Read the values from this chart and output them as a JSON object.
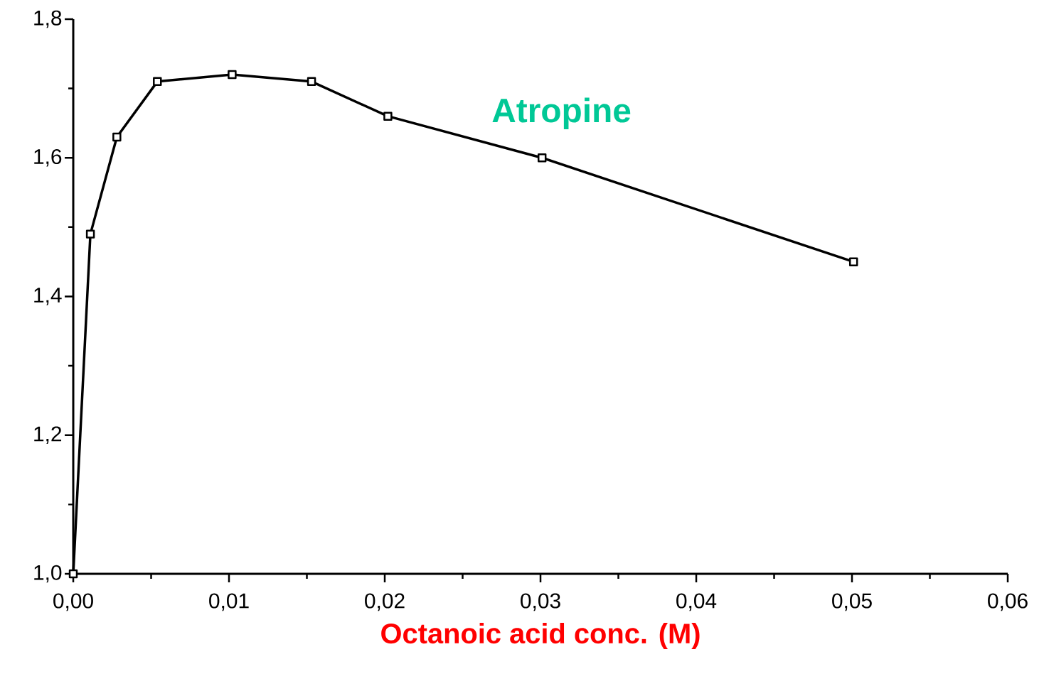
{
  "chart_data": {
    "type": "line",
    "xlabel": "Octanoic acid conc. (M)",
    "x": [
      0,
      0.0011,
      0.0028,
      0.0054,
      0.0102,
      0.0153,
      0.0202,
      0.0301,
      0.0501
    ],
    "series": [
      {
        "name": "Atropine",
        "color": "#000000",
        "values": [
          1.0,
          1.49,
          1.63,
          1.71,
          1.72,
          1.71,
          1.66,
          1.6,
          1.45
        ]
      }
    ],
    "xlim": [
      0,
      0.06
    ],
    "ylim": [
      1.0,
      1.8
    ],
    "xticks": [
      {
        "value": 0,
        "label": "0,00"
      },
      {
        "value": 0.01,
        "label": "0,01"
      },
      {
        "value": 0.02,
        "label": "0,02"
      },
      {
        "value": 0.03,
        "label": "0,03"
      },
      {
        "value": 0.04,
        "label": "0,04"
      },
      {
        "value": 0.05,
        "label": "0,05"
      },
      {
        "value": 0.06,
        "label": "0,06"
      }
    ],
    "yticks": [
      {
        "value": 1.0,
        "label": "1,0"
      },
      {
        "value": 1.2,
        "label": "1,2"
      },
      {
        "value": 1.4,
        "label": "1,4"
      },
      {
        "value": 1.6,
        "label": "1,6"
      },
      {
        "value": 1.8,
        "label": "1,8"
      }
    ],
    "marker": "square",
    "line_style": "solid",
    "grid": false,
    "legend": false
  }
}
